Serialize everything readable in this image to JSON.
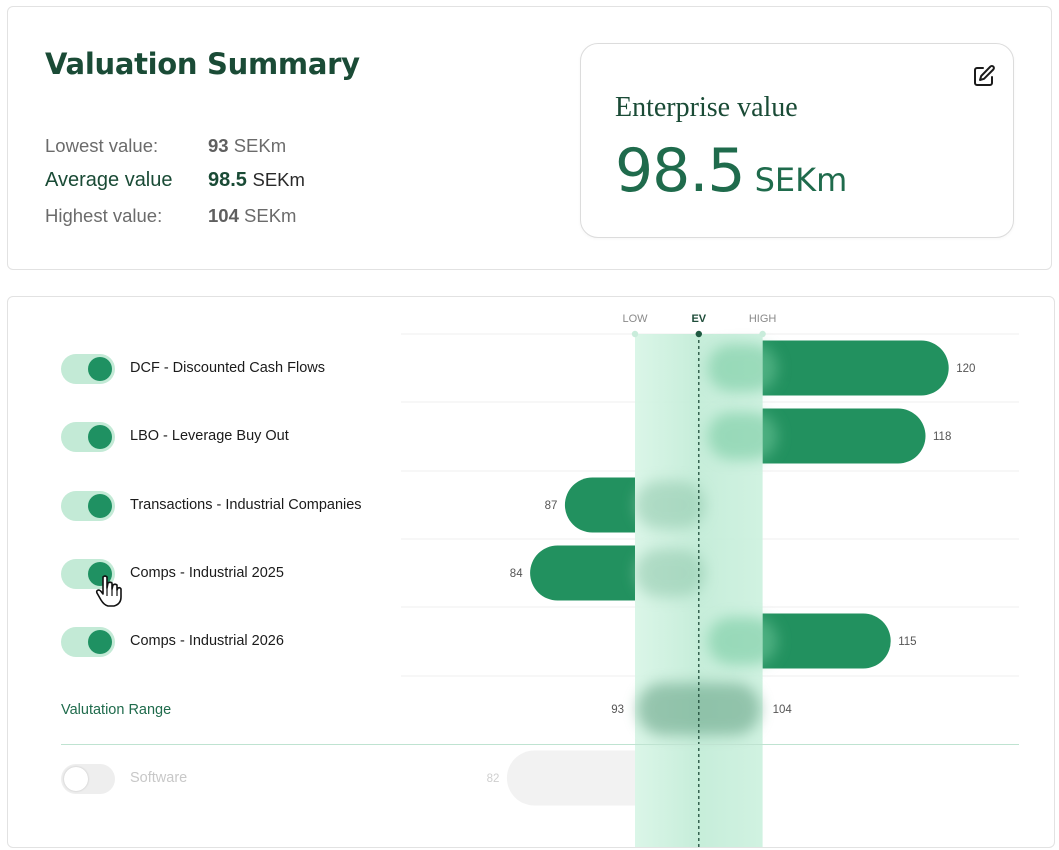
{
  "summary": {
    "title": "Valuation Summary",
    "lowest": {
      "label": "Lowest value:",
      "value": "93",
      "unit": "SEKm"
    },
    "average": {
      "label": "Average value",
      "value": "98.5",
      "unit": "SEKm"
    },
    "highest": {
      "label": "Highest value:",
      "value": "104",
      "unit": "SEKm"
    }
  },
  "enterprise_value": {
    "label": "Enterprise value",
    "value": "98.5",
    "unit": "SEKm",
    "edit_icon": "edit-icon"
  },
  "chart": {
    "markers": {
      "low": "LOW",
      "ev": "EV",
      "high": "HIGH"
    },
    "range_label": "Valutation Range",
    "colors": {
      "bar": "#22915f",
      "band": "#c6f0dc",
      "disabled": "#f2f2f2",
      "accent": "#1f6b4c"
    }
  },
  "chart_data": {
    "type": "bar",
    "orientation": "horizontal",
    "categories": [
      "DCF - Discounted Cash Flows",
      "LBO - Leverage Buy Out",
      "Transactions - Industrial Companies",
      "Comps - Industrial 2025",
      "Comps - Industrial 2026"
    ],
    "values": [
      120,
      118,
      87,
      84,
      115
    ],
    "enabled": [
      true,
      true,
      true,
      true,
      true
    ],
    "range": {
      "low": 93,
      "high": 104,
      "ev": 98.5
    },
    "disabled_series": {
      "name": "Software",
      "value": 82,
      "enabled": false
    },
    "markers": [
      "LOW",
      "EV",
      "HIGH"
    ]
  }
}
